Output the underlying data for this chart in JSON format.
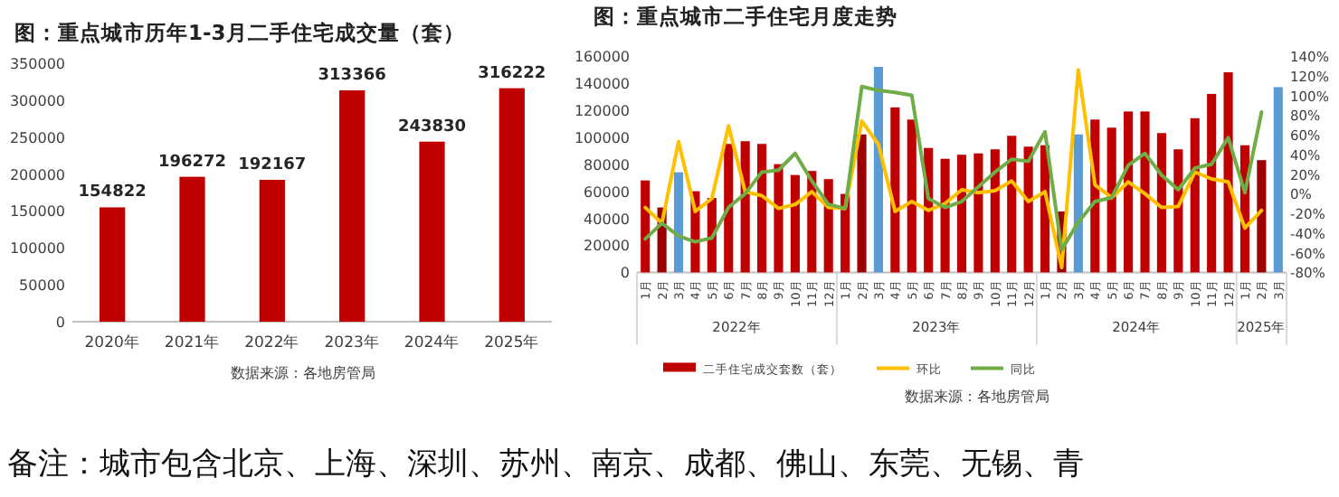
{
  "chart_data": [
    {
      "type": "bar",
      "title": "图：重点城市历年1-3月二手住宅成交量（套）",
      "categories": [
        "2020年",
        "2021年",
        "2022年",
        "2023年",
        "2024年",
        "2025年"
      ],
      "values": [
        154822,
        196272,
        192167,
        313366,
        243830,
        316222
      ],
      "color": "#c00000",
      "data_labels": true,
      "ylim": [
        0,
        350000
      ],
      "yticks": [
        0,
        50000,
        100000,
        150000,
        200000,
        250000,
        300000,
        350000
      ],
      "annotations": [
        "数据来源：各地房管局",
        "备注：城市包含北京、上海、深圳、苏州、南京、成都、佛山、东莞、无锡、青"
      ]
    },
    {
      "type": "bar",
      "title": "图：重点城市二手住宅月度走势",
      "categories": [
        "1月",
        "2月",
        "3月",
        "4月",
        "5月",
        "6月",
        "7月",
        "8月",
        "9月",
        "10月",
        "11月",
        "12月",
        "1月",
        "2月",
        "3月",
        "4月",
        "5月",
        "6月",
        "7月",
        "8月",
        "9月",
        "10月",
        "11月",
        "12月",
        "1月",
        "2月",
        "3月",
        "4月",
        "5月",
        "6月",
        "7月",
        "8月",
        "9月",
        "10月",
        "11月",
        "12月",
        "1月",
        "2月",
        "3月"
      ],
      "series": [
        {
          "name": "二手住宅成交套数（套）",
          "type": "bar",
          "color": "#c00000",
          "colors": [
            "#c00000",
            "#9c0000",
            "#5b9bd5",
            "#c00000",
            "#c00000",
            "#c00000",
            "#c00000",
            "#c00000",
            "#c00000",
            "#c00000",
            "#c00000",
            "#c00000",
            "#c00000",
            "#9c0000",
            "#5b9bd5",
            "#c00000",
            "#c00000",
            "#c00000",
            "#c00000",
            "#c00000",
            "#c00000",
            "#c00000",
            "#c00000",
            "#c00000",
            "#c00000",
            "#9c0000",
            "#5b9bd5",
            "#c00000",
            "#c00000",
            "#c00000",
            "#c00000",
            "#c00000",
            "#c00000",
            "#c00000",
            "#c00000",
            "#c00000",
            "#c00000",
            "#9c0000",
            "#5b9bd5"
          ],
          "values": [
            68000,
            48000,
            74000,
            60000,
            55000,
            95000,
            97000,
            95000,
            80000,
            72000,
            75000,
            69000,
            58000,
            102000,
            152000,
            122000,
            113000,
            92000,
            84000,
            87000,
            88000,
            91000,
            101000,
            93000,
            94000,
            45000,
            102000,
            113000,
            107000,
            119000,
            119000,
            103000,
            91000,
            114000,
            132000,
            148000,
            94000,
            83000,
            137000
          ]
        },
        {
          "name": "环比",
          "type": "line",
          "color": "#ffc000",
          "axis": "y2",
          "values": [
            -14,
            -30,
            53,
            -18,
            -5,
            69,
            2,
            -2,
            -15,
            -11,
            2,
            -14,
            -15,
            74,
            50,
            -18,
            -8,
            -17,
            -10,
            4,
            1,
            3,
            13,
            -8,
            2,
            -75,
            126,
            9,
            -4,
            12,
            0,
            -14,
            -13,
            22,
            15,
            12,
            -35,
            -17,
            null
          ]
        },
        {
          "name": "同比",
          "type": "line",
          "color": "#70ad47",
          "axis": "y2",
          "values": [
            -46,
            -30,
            -43,
            -49,
            -45,
            -14,
            0,
            22,
            24,
            41,
            13,
            -11,
            -15,
            109,
            105,
            103,
            100,
            -5,
            -14,
            -8,
            7,
            22,
            35,
            33,
            63,
            -57,
            -29,
            -8,
            -4,
            29,
            41,
            19,
            4,
            26,
            30,
            57,
            1,
            83,
            null
          ]
        }
      ],
      "ylim": [
        0,
        160000
      ],
      "yticks": [
        0,
        20000,
        40000,
        60000,
        80000,
        100000,
        120000,
        140000,
        160000
      ],
      "y2lim": [
        -80,
        140
      ],
      "y2ticks": [
        {
          "value": -80,
          "label": "-80%"
        },
        {
          "value": -60,
          "label": "-60%"
        },
        {
          "value": -40,
          "label": "-40%"
        },
        {
          "value": -20,
          "label": "-20%"
        },
        {
          "value": 0,
          "label": "0%"
        },
        {
          "value": 20,
          "label": "20%"
        },
        {
          "value": 40,
          "label": "40%"
        },
        {
          "value": 60,
          "label": "60%"
        },
        {
          "value": 80,
          "label": "80%"
        },
        {
          "value": 100,
          "label": "100%"
        },
        {
          "value": 120,
          "label": "120%"
        },
        {
          "value": 140,
          "label": "140%"
        }
      ],
      "legend": "bottom",
      "annotations": [
        "2022年",
        "2023年",
        "2024年",
        "2025年",
        "数据来源：各地房管局"
      ]
    }
  ]
}
